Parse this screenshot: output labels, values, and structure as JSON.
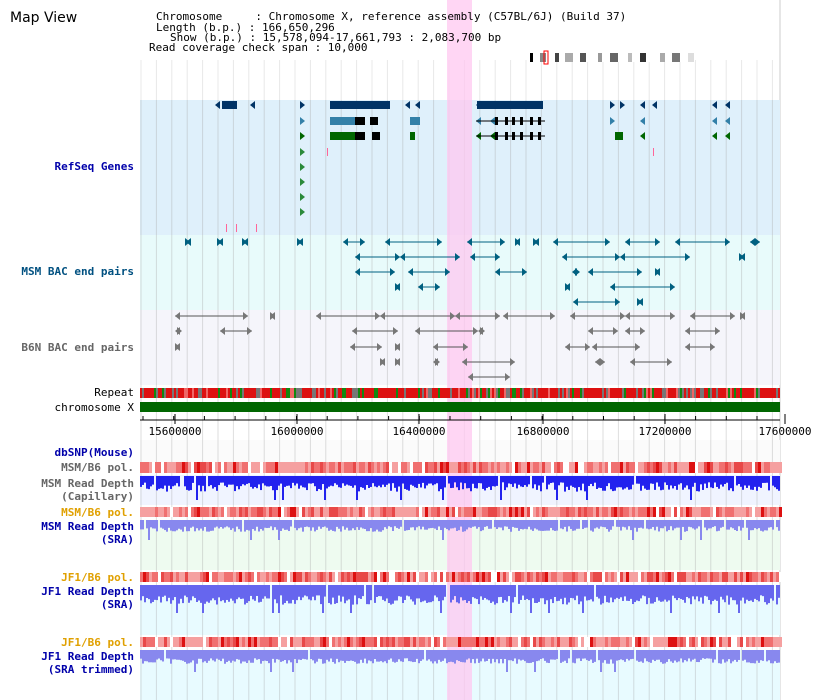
{
  "title": "Map View",
  "info": {
    "chromosome": "Chromosome     : Chromosome X, reference assembly (C57BL/6J) (Build 37)",
    "length": "Length (b.p.) : 166,650,296",
    "show": "Show (b.p.) : 15,578,094-17,661,793 : 2,083,700 bp",
    "coverage": "Read coverage check span : 10,000"
  },
  "tracks": {
    "refseq": "RefSeq Genes",
    "msm_bac": "MSM BAC end pairs",
    "b6n_bac": "B6N BAC end pairs",
    "repeat": "Repeat",
    "chromosome": "chromosome X",
    "dbsnp": "dbSNP(Mouse)",
    "msm_pol1": "MSM/B6 pol.",
    "msm_depth_cap_1": "MSM Read Depth",
    "msm_depth_cap_2": "(Capillary)",
    "msm_pol2": "MSM/B6 pol.",
    "msm_depth_sra_1": "MSM Read Depth",
    "msm_depth_sra_2": "(SRA)",
    "jf1_pol1": "JF1/B6 pol.",
    "jf1_depth_sra_1": "JF1 Read Depth",
    "jf1_depth_sra_2": "(SRA)",
    "jf1_pol2": "JF1/B6 pol.",
    "jf1_depth_trim_1": "JF1 Read Depth",
    "jf1_depth_trim_2": "(SRA trimmed)"
  },
  "ruler": {
    "start": 15578094,
    "end": 17661793,
    "ticks": [
      "15600000",
      "16000000",
      "16400000",
      "16800000",
      "17200000",
      "17600000"
    ]
  },
  "colors": {
    "refseq_bg": "#dff0fb",
    "msm_bg": "#e8fbfb",
    "b6n_bg": "#f5f5fb",
    "highlight": "#ffc8f0",
    "chromosome": "#006600",
    "gene_dark": "#003366",
    "gene_mid": "#3380a8",
    "gene_green": "#006600",
    "bac_teal": "#006080",
    "bac_gray": "#555555"
  }
}
